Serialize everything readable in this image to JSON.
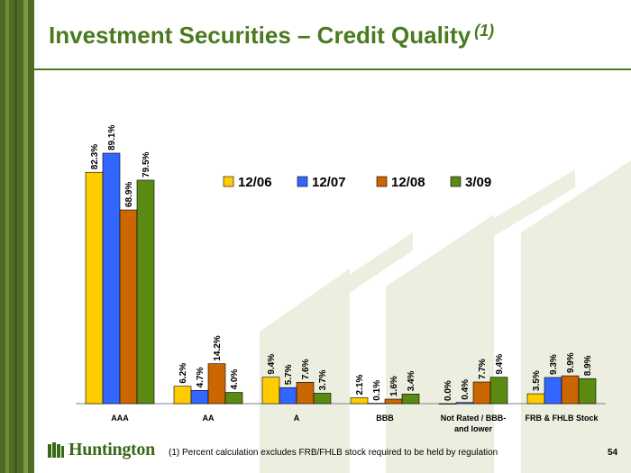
{
  "title": "Investment Securities – Credit Quality",
  "title_superscript": "(1)",
  "footnote": "(1)   Percent calculation excludes FRB/FHLB stock required to be held by regulation",
  "page_number": "54",
  "logo_text": "Huntington",
  "colors": {
    "brand_green": "#4a7a1e",
    "series": [
      "#ffcc00",
      "#3366ff",
      "#cc6600",
      "#5a8a12"
    ]
  },
  "chart_data": {
    "type": "bar",
    "categories": [
      "AAA",
      "AA",
      "A",
      "BBB",
      "Not Rated / BBB- and lower",
      "FRB & FHLB Stock"
    ],
    "series": [
      {
        "name": "12/06",
        "values": [
          82.3,
          6.2,
          9.4,
          2.1,
          0.0,
          3.5
        ],
        "labels": [
          "82.3%",
          "6.2%",
          "9.4%",
          "2.1%",
          "0.0%",
          "3.5%"
        ]
      },
      {
        "name": "12/07",
        "values": [
          89.1,
          4.7,
          5.7,
          0.1,
          0.4,
          9.3
        ],
        "labels": [
          "89.1%",
          "4.7%",
          "5.7%",
          "0.1%",
          "0.4%",
          "9.3%"
        ]
      },
      {
        "name": "12/08",
        "values": [
          68.9,
          14.2,
          7.6,
          1.6,
          7.7,
          9.9
        ],
        "labels": [
          "68.9%",
          "14.2%",
          "7.6%",
          "1.6%",
          "7.7%",
          "9.9%"
        ]
      },
      {
        "name": "3/09",
        "values": [
          79.5,
          4.0,
          3.7,
          3.4,
          9.4,
          8.9
        ],
        "labels": [
          "79.5%",
          "4.0%",
          "3.7%",
          "3.4%",
          "9.4%",
          "8.9%"
        ]
      }
    ],
    "ylim": [
      0,
      100
    ],
    "legend": "top-right",
    "grid": false
  }
}
